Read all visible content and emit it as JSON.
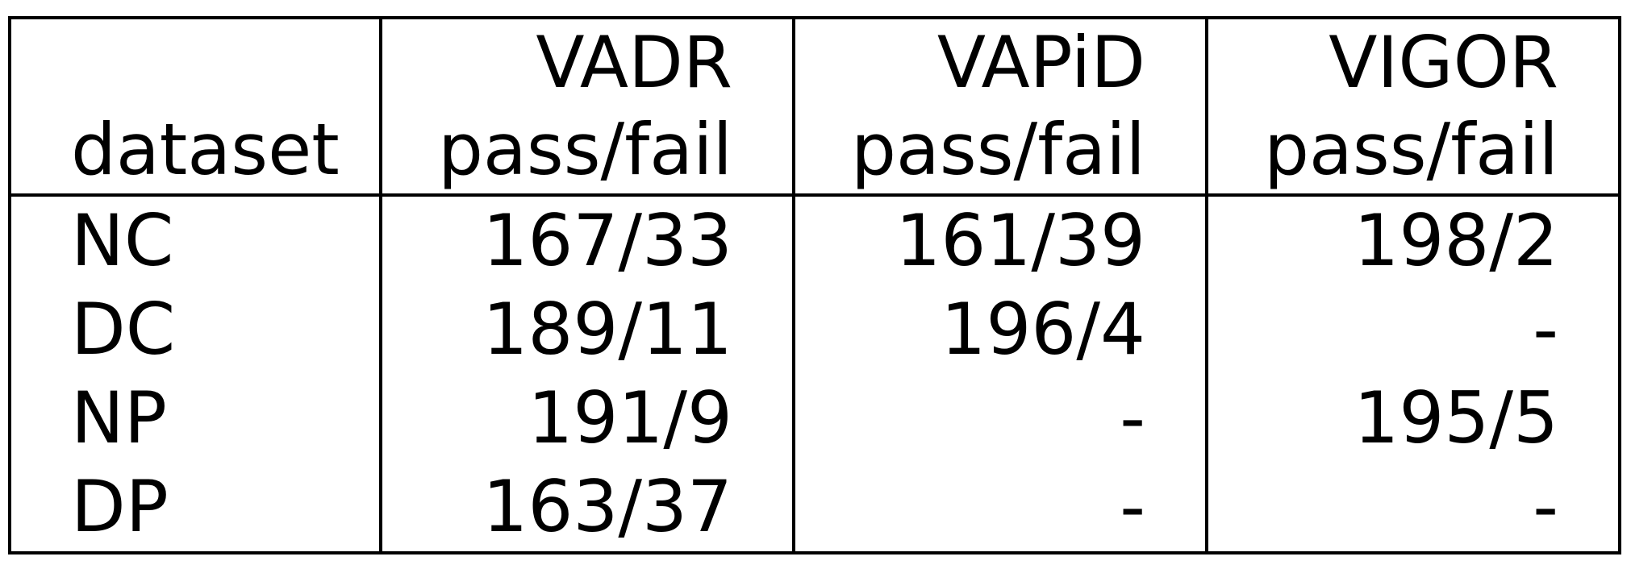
{
  "table": {
    "columns": [
      {
        "top": "",
        "bottom": "dataset"
      },
      {
        "top": "VADR",
        "bottom": "pass/fail"
      },
      {
        "top": "VAPiD",
        "bottom": "pass/fail"
      },
      {
        "top": "VIGOR",
        "bottom": "pass/fail"
      }
    ],
    "rows": [
      [
        "NC",
        "167/33",
        "161/39",
        "198/2"
      ],
      [
        "DC",
        "189/11",
        "196/4",
        "-"
      ],
      [
        "NP",
        "191/9",
        "-",
        "195/5"
      ],
      [
        "DP",
        "163/37",
        "-",
        "-"
      ]
    ]
  }
}
